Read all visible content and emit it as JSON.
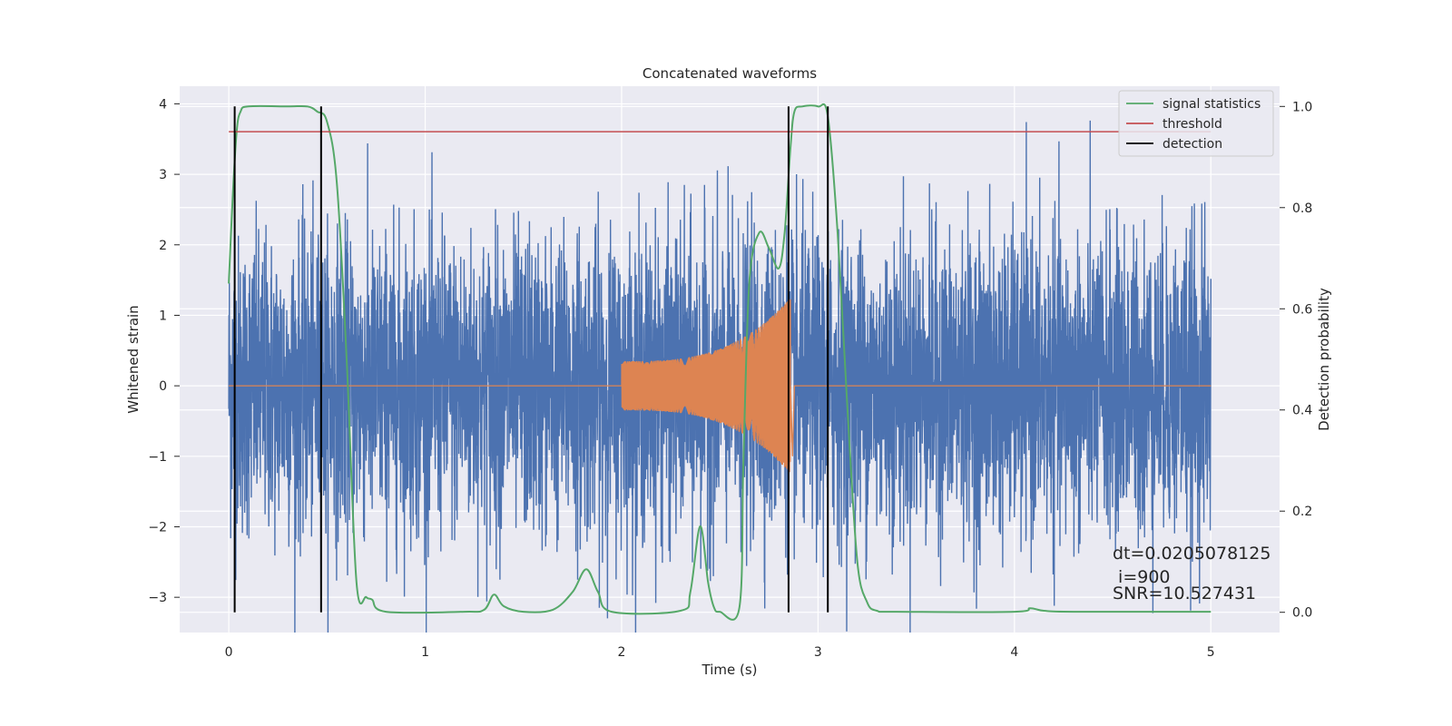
{
  "chart_data": {
    "type": "line",
    "title": "Concatenated waveforms",
    "xlabel": "Time (s)",
    "ylabel": "Whitened strain",
    "y2label": "Detection probability",
    "xlim": [
      -0.25,
      5.35
    ],
    "ylim": [
      -3.5,
      4.25
    ],
    "y2lim": [
      -0.04,
      1.04
    ],
    "x_ticks": [
      0,
      1,
      2,
      3,
      4,
      5
    ],
    "y_ticks": [
      -3,
      -2,
      -1,
      0,
      1,
      2,
      3,
      4
    ],
    "y2_ticks": [
      0.0,
      0.2,
      0.4,
      0.6,
      0.8,
      1.0
    ],
    "grid": true,
    "legend_position": "top-right",
    "colors": {
      "strain": "#4c72b0",
      "injection": "#dd8452",
      "signal_statistics": "#55a868",
      "threshold": "#c44e52",
      "detection": "#000000",
      "background": "#eaeaf2",
      "grid": "#ffffff"
    },
    "series": [
      {
        "name": "",
        "axis": "left",
        "kind": "noise",
        "x_range": [
          0,
          5
        ],
        "spread": 1.05,
        "peak": 3.9
      },
      {
        "name": "",
        "axis": "left",
        "kind": "chirp",
        "start": 2.0,
        "merger": 2.86,
        "amp_start": 0.35,
        "amp_peak": 1.25,
        "flat_value": 0
      },
      {
        "name": "signal statistics",
        "axis": "right",
        "x": [
          0,
          0.02,
          0.04,
          0.06,
          0.1,
          0.3,
          0.4,
          0.45,
          0.5,
          0.55,
          0.6,
          0.65,
          0.7,
          0.73,
          0.8,
          1.2,
          1.3,
          1.35,
          1.4,
          1.5,
          1.65,
          1.75,
          1.82,
          1.88,
          1.95,
          2.3,
          2.35,
          2.4,
          2.44,
          2.47,
          2.5,
          2.6,
          2.62,
          2.65,
          2.7,
          2.75,
          2.8,
          2.83,
          2.86,
          2.88,
          2.92,
          3.0,
          3.05,
          3.1,
          3.15,
          3.2,
          3.25,
          3.3,
          3.4,
          4.0,
          4.08,
          4.15,
          4.3,
          5.0
        ],
        "values": [
          0.65,
          0.82,
          0.95,
          0.99,
          1.0,
          1.0,
          1.0,
          0.99,
          0.97,
          0.85,
          0.5,
          0.06,
          0.03,
          0.025,
          0.001,
          0.001,
          0.005,
          0.035,
          0.012,
          0.001,
          0.005,
          0.04,
          0.085,
          0.04,
          0.001,
          0.003,
          0.04,
          0.17,
          0.06,
          0.01,
          0.001,
          0.01,
          0.3,
          0.65,
          0.75,
          0.72,
          0.68,
          0.75,
          0.92,
          0.99,
          1.0,
          1.0,
          0.98,
          0.75,
          0.4,
          0.1,
          0.02,
          0.003,
          0.001,
          0.001,
          0.008,
          0.003,
          0.001,
          0.001
        ]
      },
      {
        "name": "threshold",
        "axis": "right",
        "x": [
          0,
          5
        ],
        "values": [
          0.95,
          0.95
        ]
      },
      {
        "name": "detection",
        "axis": "right",
        "vlines": [
          0.03,
          0.47,
          2.85,
          3.05
        ],
        "ymin": 0.0,
        "ymax": 1.0
      }
    ],
    "annotations": [
      "dt=0.0205078125",
      " i=900",
      "SNR=10.527431"
    ]
  }
}
